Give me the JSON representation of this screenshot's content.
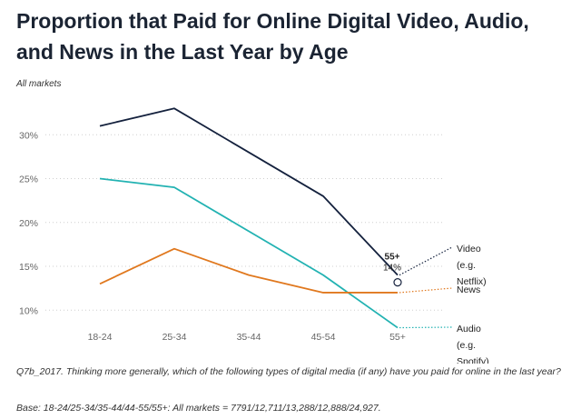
{
  "title": "Proportion that Paid for Online Digital Video, Audio, and News in the Last Year by Age",
  "subtitle": "All markets",
  "footnote_question": "Q7b_2017. Thinking more generally, which of the following types of digital media (if any) have you paid for online in the last year?",
  "footnote_base": "Base: 18-24/25-34/35-44/44-55/55+: All markets = 7791/12,711/13,288/12,888/24,927.",
  "chart_data": {
    "type": "line",
    "categories": [
      "18-24",
      "25-34",
      "35-44",
      "45-54",
      "55+"
    ],
    "ylim": [
      8,
      35
    ],
    "y_ticks": [
      10,
      15,
      20,
      25,
      30
    ],
    "y_tick_labels": [
      "10%",
      "15%",
      "20%",
      "25%",
      "30%"
    ],
    "grid": "horizontal dotted",
    "series": [
      {
        "name": "Video (e.g. Netflix)",
        "label_lines": [
          "Video",
          "(e.g.",
          "Netflix)"
        ],
        "values": [
          31,
          33,
          28,
          23,
          14
        ],
        "color": "#14213d"
      },
      {
        "name": "Audio (e.g. Spotify)",
        "label_lines": [
          "Audio",
          "(e.g.",
          "Spotify)"
        ],
        "values": [
          25,
          24,
          19,
          14,
          8
        ],
        "color": "#22b2b2"
      },
      {
        "name": "News",
        "label_lines": [
          "News"
        ],
        "values": [
          13,
          17,
          14,
          12,
          12
        ],
        "color": "#e0781e"
      }
    ],
    "annotation": {
      "category": "55+",
      "label": "55+",
      "value_label": "14%"
    }
  }
}
